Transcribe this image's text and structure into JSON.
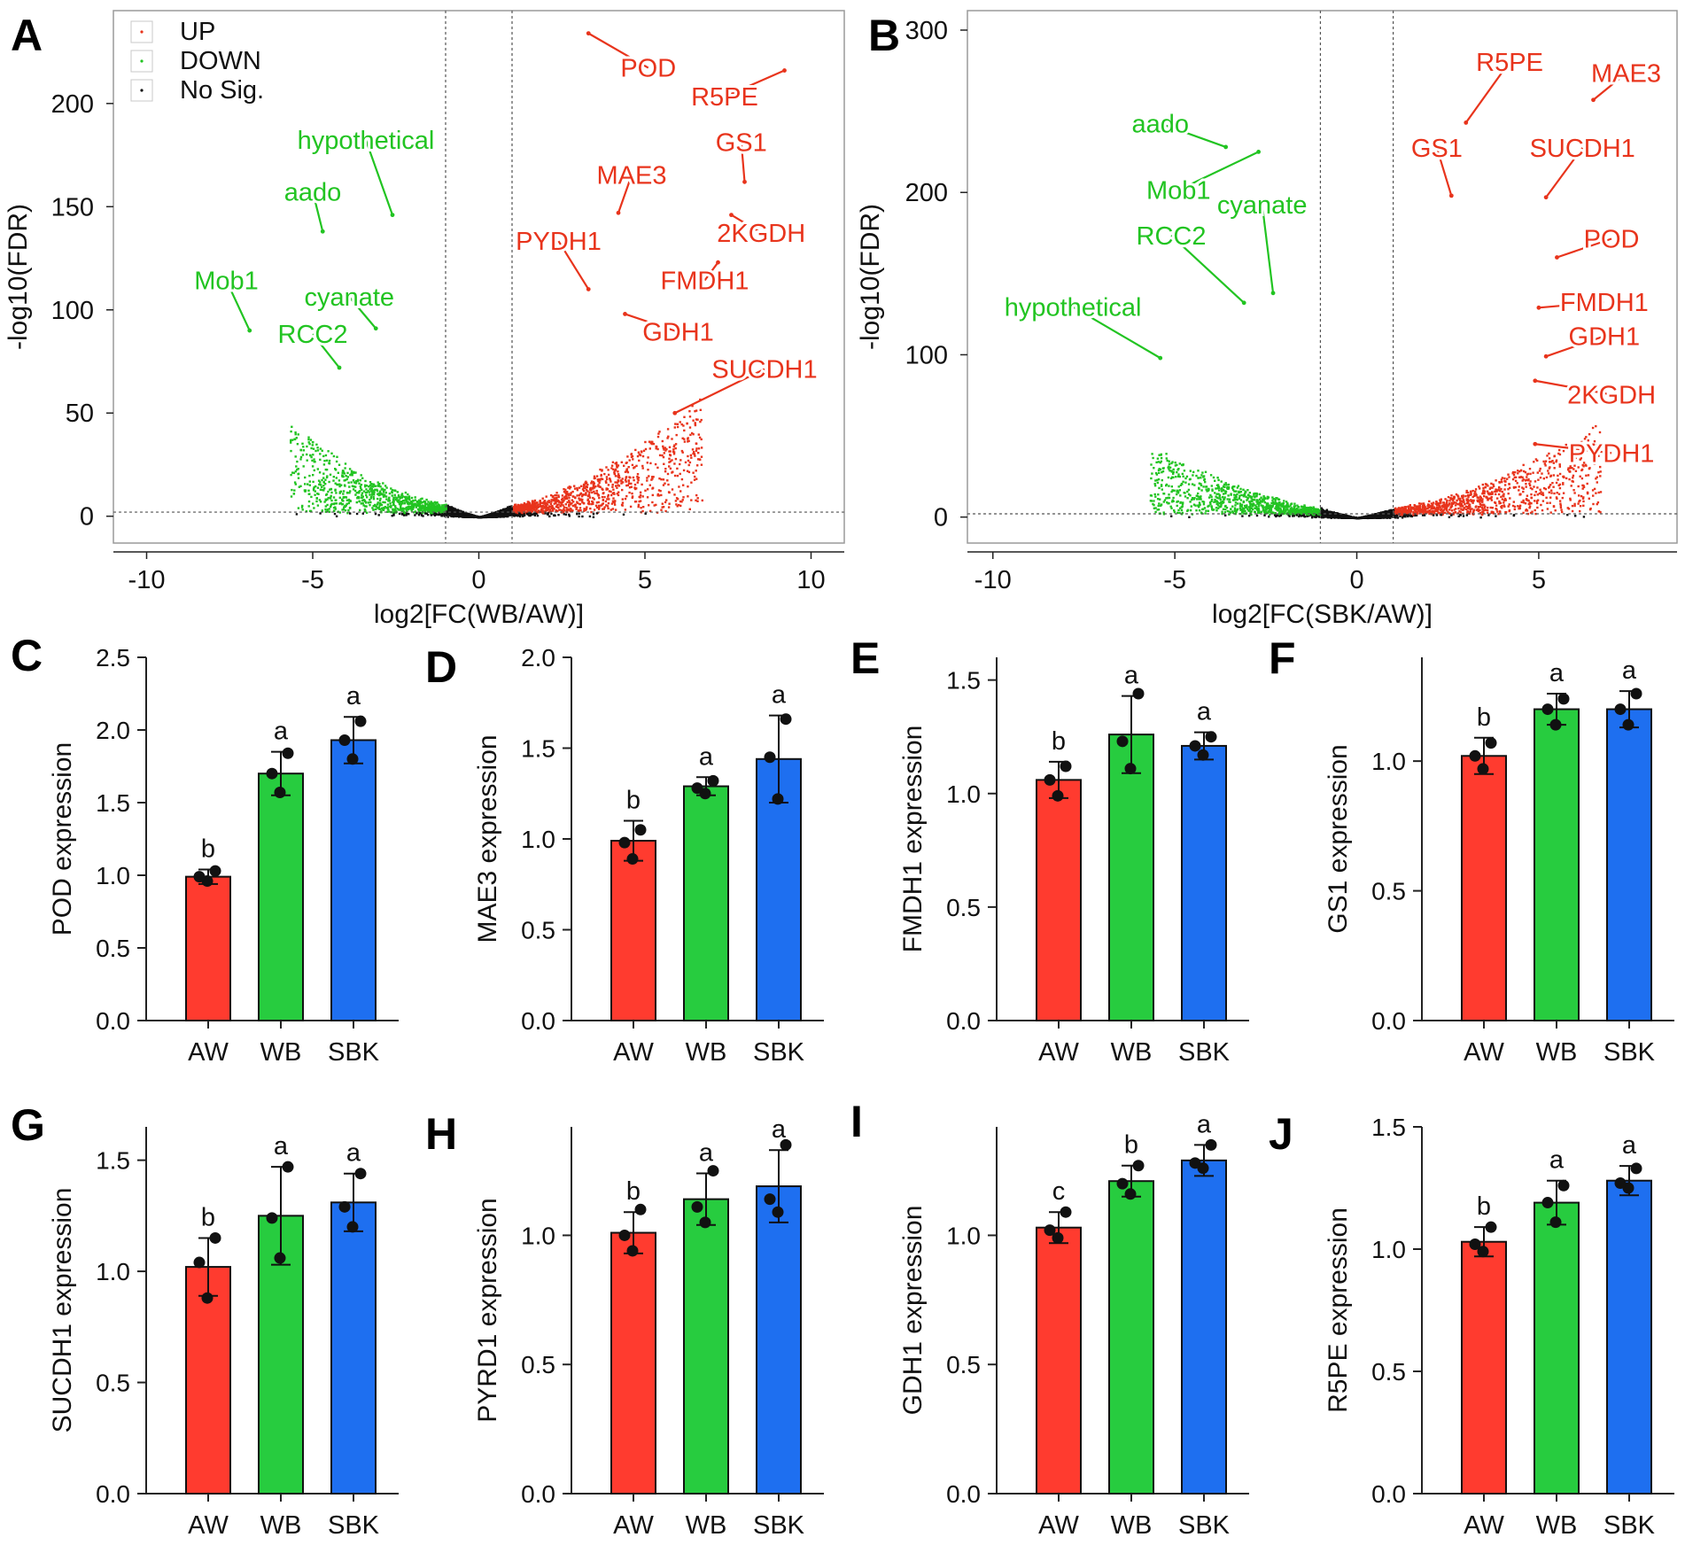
{
  "figure": {
    "colors": {
      "up": "#e8341c",
      "down": "#22c422",
      "nosig": "#111111",
      "AW": "#ff3b2f",
      "WB": "#27cc3f",
      "SBK": "#1e6ff0",
      "axis": "#222222",
      "frame": "#9a9a9a",
      "guide": "#555555"
    }
  },
  "chart_data": [
    {
      "type": "scatter",
      "panel": "A",
      "xlabel": "log2[FC(WB/AW)]",
      "ylabel": "-log10(FDR)",
      "xlim": [
        -11,
        11
      ],
      "ylim": [
        -13,
        245
      ],
      "xticks": [
        -10,
        -5,
        0,
        5,
        10
      ],
      "yticks": [
        0,
        50,
        100,
        150,
        200
      ],
      "thresholds": {
        "x": [
          -1,
          1
        ],
        "y": 2
      },
      "legend": [
        "UP",
        "DOWN",
        "No Sig."
      ],
      "labels": [
        {
          "text": "POD",
          "group": "up",
          "point": [
            3.3,
            234
          ],
          "text_at": [
            5.1,
            213
          ]
        },
        {
          "text": "R5PE",
          "group": "up",
          "point": [
            9.2,
            216
          ],
          "text_at": [
            7.4,
            199
          ]
        },
        {
          "text": "GS1",
          "group": "up",
          "point": [
            8.0,
            162
          ],
          "text_at": [
            7.9,
            177
          ]
        },
        {
          "text": "MAE3",
          "group": "up",
          "point": [
            4.2,
            147
          ],
          "text_at": [
            4.6,
            161
          ]
        },
        {
          "text": "2KGDH",
          "group": "up",
          "point": [
            7.6,
            146
          ],
          "text_at": [
            8.5,
            133
          ]
        },
        {
          "text": "PYDH1",
          "group": "up",
          "point": [
            3.3,
            110
          ],
          "text_at": [
            2.4,
            129
          ]
        },
        {
          "text": "FMDH1",
          "group": "up",
          "point": [
            7.2,
            123
          ],
          "text_at": [
            6.8,
            110
          ]
        },
        {
          "text": "GDH1",
          "group": "up",
          "point": [
            4.4,
            98
          ],
          "text_at": [
            6.0,
            85
          ]
        },
        {
          "text": "SUCDH1",
          "group": "up",
          "point": [
            5.9,
            50
          ],
          "text_at": [
            8.6,
            67
          ]
        },
        {
          "text": "hypothetical",
          "group": "down",
          "point": [
            -2.6,
            146
          ],
          "text_at": [
            -3.4,
            178
          ]
        },
        {
          "text": "aado",
          "group": "down",
          "point": [
            -4.7,
            138
          ],
          "text_at": [
            -5.0,
            153
          ]
        },
        {
          "text": "Mob1",
          "group": "down",
          "point": [
            -6.9,
            90
          ],
          "text_at": [
            -7.6,
            110
          ]
        },
        {
          "text": "cyanate",
          "group": "down",
          "point": [
            -3.1,
            91
          ],
          "text_at": [
            -3.9,
            102
          ]
        },
        {
          "text": "RCC2",
          "group": "down",
          "point": [
            -4.2,
            72
          ],
          "text_at": [
            -5.0,
            84
          ]
        }
      ]
    },
    {
      "type": "scatter",
      "panel": "B",
      "xlabel": "log2[FC(SBK/AW)]",
      "ylabel": "-log10(FDR)",
      "xlim": [
        -10.7,
        8.8
      ],
      "ylim": [
        -16,
        312
      ],
      "xticks": [
        -10,
        -5,
        0,
        5
      ],
      "yticks": [
        0,
        100,
        200,
        300
      ],
      "thresholds": {
        "x": [
          -1,
          1
        ],
        "y": 2
      },
      "labels": [
        {
          "text": "R5PE",
          "group": "up",
          "point": [
            3.0,
            243
          ],
          "text_at": [
            4.2,
            275
          ]
        },
        {
          "text": "MAE3",
          "group": "up",
          "point": [
            6.5,
            257
          ],
          "text_at": [
            7.4,
            268
          ]
        },
        {
          "text": "GS1",
          "group": "up",
          "point": [
            2.6,
            198
          ],
          "text_at": [
            2.2,
            222
          ]
        },
        {
          "text": "SUCDH1",
          "group": "up",
          "point": [
            5.2,
            197
          ],
          "text_at": [
            6.2,
            222
          ]
        },
        {
          "text": "POD",
          "group": "up",
          "point": [
            5.5,
            160
          ],
          "text_at": [
            7.0,
            166
          ]
        },
        {
          "text": "FMDH1",
          "group": "up",
          "point": [
            5.0,
            129
          ],
          "text_at": [
            6.8,
            127
          ]
        },
        {
          "text": "GDH1",
          "group": "up",
          "point": [
            5.2,
            99
          ],
          "text_at": [
            6.8,
            106
          ]
        },
        {
          "text": "2KGDH",
          "group": "up",
          "point": [
            4.9,
            84
          ],
          "text_at": [
            7.0,
            70
          ]
        },
        {
          "text": "PYDH1",
          "group": "up",
          "point": [
            4.9,
            45
          ],
          "text_at": [
            7.0,
            34
          ]
        },
        {
          "text": "aado",
          "group": "down",
          "point": [
            -3.6,
            228
          ],
          "text_at": [
            -5.4,
            237
          ]
        },
        {
          "text": "Mob1",
          "group": "down",
          "point": [
            -2.7,
            225
          ],
          "text_at": [
            -4.9,
            196
          ]
        },
        {
          "text": "cyanate",
          "group": "down",
          "point": [
            -2.3,
            138
          ],
          "text_at": [
            -2.6,
            187
          ]
        },
        {
          "text": "RCC2",
          "group": "down",
          "point": [
            -3.1,
            132
          ],
          "text_at": [
            -5.1,
            168
          ]
        },
        {
          "text": "hypothetical",
          "group": "down",
          "point": [
            -5.4,
            98
          ],
          "text_at": [
            -7.8,
            124
          ]
        }
      ]
    },
    {
      "type": "bar",
      "panel": "C",
      "ylabel": "POD expression",
      "categories": [
        "AW",
        "WB",
        "SBK"
      ],
      "values": [
        0.99,
        1.7,
        1.93
      ],
      "errors": [
        0.05,
        0.15,
        0.16
      ],
      "points": [
        [
          0.96,
          0.99,
          1.03
        ],
        [
          1.57,
          1.7,
          1.84
        ],
        [
          1.8,
          1.93,
          2.06
        ]
      ],
      "letters": [
        "b",
        "a",
        "a"
      ],
      "ylim": [
        0,
        2.5
      ],
      "yticks": [
        0,
        0.5,
        1.0,
        1.5,
        2.0,
        2.5
      ]
    },
    {
      "type": "bar",
      "panel": "D",
      "ylabel": "MAE3 expression",
      "categories": [
        "AW",
        "WB",
        "SBK"
      ],
      "values": [
        0.99,
        1.29,
        1.44
      ],
      "errors": [
        0.11,
        0.05,
        0.24
      ],
      "points": [
        [
          0.89,
          0.98,
          1.05
        ],
        [
          1.25,
          1.28,
          1.32
        ],
        [
          1.22,
          1.45,
          1.66
        ]
      ],
      "letters": [
        "b",
        "a",
        "a"
      ],
      "ylim": [
        0,
        2.0
      ],
      "yticks": [
        0,
        0.5,
        1.0,
        1.5,
        2.0
      ]
    },
    {
      "type": "bar",
      "panel": "E",
      "ylabel": "FMDH1 expression",
      "categories": [
        "AW",
        "WB",
        "SBK"
      ],
      "values": [
        1.06,
        1.26,
        1.21
      ],
      "errors": [
        0.08,
        0.17,
        0.06
      ],
      "points": [
        [
          0.99,
          1.06,
          1.12
        ],
        [
          1.11,
          1.23,
          1.44
        ],
        [
          1.17,
          1.21,
          1.25
        ]
      ],
      "letters": [
        "b",
        "a",
        "a"
      ],
      "ylim": [
        0,
        1.6
      ],
      "yticks": [
        0,
        0.5,
        1.0,
        1.5
      ]
    },
    {
      "type": "bar",
      "panel": "F",
      "ylabel": "GS1 expression",
      "categories": [
        "AW",
        "WB",
        "SBK"
      ],
      "values": [
        1.02,
        1.2,
        1.2
      ],
      "errors": [
        0.07,
        0.06,
        0.07
      ],
      "points": [
        [
          0.97,
          1.02,
          1.07
        ],
        [
          1.14,
          1.2,
          1.24
        ],
        [
          1.14,
          1.2,
          1.26
        ]
      ],
      "letters": [
        "b",
        "a",
        "a"
      ],
      "ylim": [
        0,
        1.4
      ],
      "yticks": [
        0,
        0.5,
        1.0
      ]
    },
    {
      "type": "bar",
      "panel": "G",
      "ylabel": "SUCDH1 expression",
      "categories": [
        "AW",
        "WB",
        "SBK"
      ],
      "values": [
        1.02,
        1.25,
        1.31
      ],
      "errors": [
        0.13,
        0.22,
        0.13
      ],
      "points": [
        [
          0.88,
          1.04,
          1.15
        ],
        [
          1.06,
          1.24,
          1.47
        ],
        [
          1.2,
          1.29,
          1.44
        ]
      ],
      "letters": [
        "b",
        "a",
        "a"
      ],
      "ylim": [
        0,
        1.65
      ],
      "yticks": [
        0,
        0.5,
        1.0,
        1.5
      ]
    },
    {
      "type": "bar",
      "panel": "H",
      "ylabel": "PYRD1 expression",
      "categories": [
        "AW",
        "WB",
        "SBK"
      ],
      "values": [
        1.01,
        1.14,
        1.19
      ],
      "errors": [
        0.08,
        0.1,
        0.14
      ],
      "points": [
        [
          0.94,
          1.0,
          1.1
        ],
        [
          1.05,
          1.11,
          1.25
        ],
        [
          1.09,
          1.14,
          1.35
        ]
      ],
      "letters": [
        "b",
        "a",
        "a"
      ],
      "ylim": [
        0,
        1.42
      ],
      "yticks": [
        0,
        0.5,
        1.0
      ]
    },
    {
      "type": "bar",
      "panel": "I",
      "ylabel": "GDH1 expression",
      "categories": [
        "AW",
        "WB",
        "SBK"
      ],
      "values": [
        1.03,
        1.21,
        1.29
      ],
      "errors": [
        0.06,
        0.06,
        0.06
      ],
      "points": [
        [
          0.99,
          1.02,
          1.09
        ],
        [
          1.16,
          1.2,
          1.27
        ],
        [
          1.26,
          1.28,
          1.35
        ]
      ],
      "letters": [
        "c",
        "b",
        "a"
      ],
      "ylim": [
        0,
        1.42
      ],
      "yticks": [
        0,
        0.5,
        1.0
      ]
    },
    {
      "type": "bar",
      "panel": "J",
      "ylabel": "R5PE expression",
      "categories": [
        "AW",
        "WB",
        "SBK"
      ],
      "values": [
        1.03,
        1.19,
        1.28
      ],
      "errors": [
        0.06,
        0.09,
        0.06
      ],
      "points": [
        [
          0.99,
          1.02,
          1.09
        ],
        [
          1.11,
          1.19,
          1.26
        ],
        [
          1.25,
          1.27,
          1.33
        ]
      ],
      "letters": [
        "b",
        "a",
        "a"
      ],
      "ylim": [
        0,
        1.5
      ],
      "yticks": [
        0,
        0.5,
        1.0,
        1.5
      ]
    }
  ]
}
